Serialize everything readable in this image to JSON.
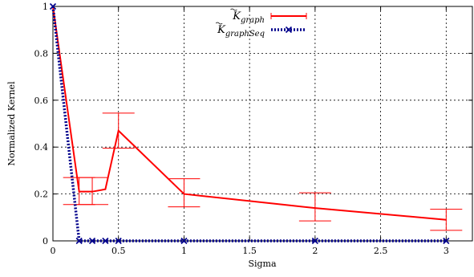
{
  "chart_data": {
    "type": "line",
    "xlabel": "Sigma",
    "ylabel": "Normalized Kernel",
    "xlim": [
      0,
      3.2
    ],
    "ylim": [
      0,
      1
    ],
    "xticks": [
      0,
      0.5,
      1,
      1.5,
      2,
      2.5,
      3
    ],
    "xtick_labels": [
      "0",
      "0.5",
      "1",
      "1.5",
      "2",
      "2.5",
      "3"
    ],
    "yticks": [
      0,
      0.2,
      0.4,
      0.6,
      0.8,
      1
    ],
    "ytick_labels": [
      "0",
      "0.2",
      "0.4",
      "0.6",
      "0.8",
      "1"
    ],
    "grid": true,
    "legend_position": "top-center",
    "series": [
      {
        "name": "K̃graph",
        "color": "#ff0000",
        "style": "solid",
        "marker": "errorbar",
        "x": [
          0,
          0.2,
          0.3,
          0.4,
          0.5,
          1,
          2,
          3
        ],
        "y": [
          1.0,
          0.21,
          0.21,
          0.22,
          0.47,
          0.2,
          0.14,
          0.09
        ],
        "err_low": [
          0.0,
          0.155,
          0.155,
          0.22,
          0.395,
          0.145,
          0.085,
          0.045
        ],
        "err_high": [
          1.0,
          0.27,
          0.27,
          0.22,
          0.545,
          0.265,
          0.205,
          0.135
        ],
        "errorbar_at": [
          0.2,
          0.3,
          0.5,
          1,
          2,
          3
        ]
      },
      {
        "name": "K̃graphSeq",
        "color": "#00008b",
        "style": "dotted",
        "marker": "x",
        "x": [
          0,
          0.2,
          0.3,
          0.4,
          0.5,
          1,
          2,
          3
        ],
        "y": [
          1.0,
          0.0,
          0.0,
          0.0,
          0.0,
          0.0,
          0.0,
          0.0
        ]
      }
    ]
  },
  "legend": [
    {
      "base": "K",
      "sub": "graph"
    },
    {
      "base": "K",
      "sub": "graphSeq"
    }
  ]
}
